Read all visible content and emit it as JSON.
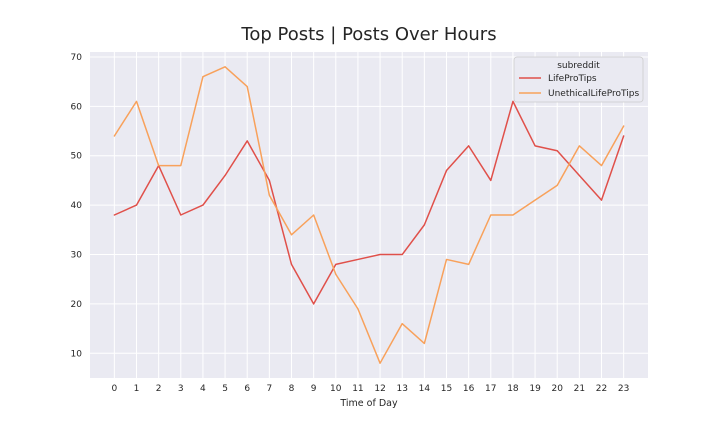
{
  "chart_data": {
    "type": "line",
    "title": "Top Posts | Posts Over Hours",
    "xlabel": "Time of Day",
    "ylabel": "",
    "x": [
      0,
      1,
      2,
      3,
      4,
      5,
      6,
      7,
      8,
      9,
      10,
      11,
      12,
      13,
      14,
      15,
      16,
      17,
      18,
      19,
      20,
      21,
      22,
      23
    ],
    "xlim": [
      -1.1,
      24.1
    ],
    "ylim": [
      5,
      71
    ],
    "yticks": [
      10,
      20,
      30,
      40,
      50,
      60,
      70
    ],
    "grid": true,
    "legend": {
      "title": "subreddit",
      "placement": "top-right"
    },
    "series": [
      {
        "name": "LifeProTips",
        "color": "#e0504a",
        "values": [
          38,
          40,
          48,
          38,
          40,
          46,
          53,
          45,
          28,
          20,
          28,
          29,
          30,
          30,
          36,
          47,
          52,
          45,
          61,
          52,
          51,
          46,
          41,
          54
        ]
      },
      {
        "name": "UnethicalLifeProTips",
        "color": "#f8a15b",
        "values": [
          54,
          61,
          48,
          48,
          66,
          68,
          64,
          42,
          34,
          38,
          26,
          19,
          8,
          16,
          12,
          29,
          28,
          38,
          38,
          41,
          44,
          52,
          48,
          56
        ]
      }
    ]
  }
}
